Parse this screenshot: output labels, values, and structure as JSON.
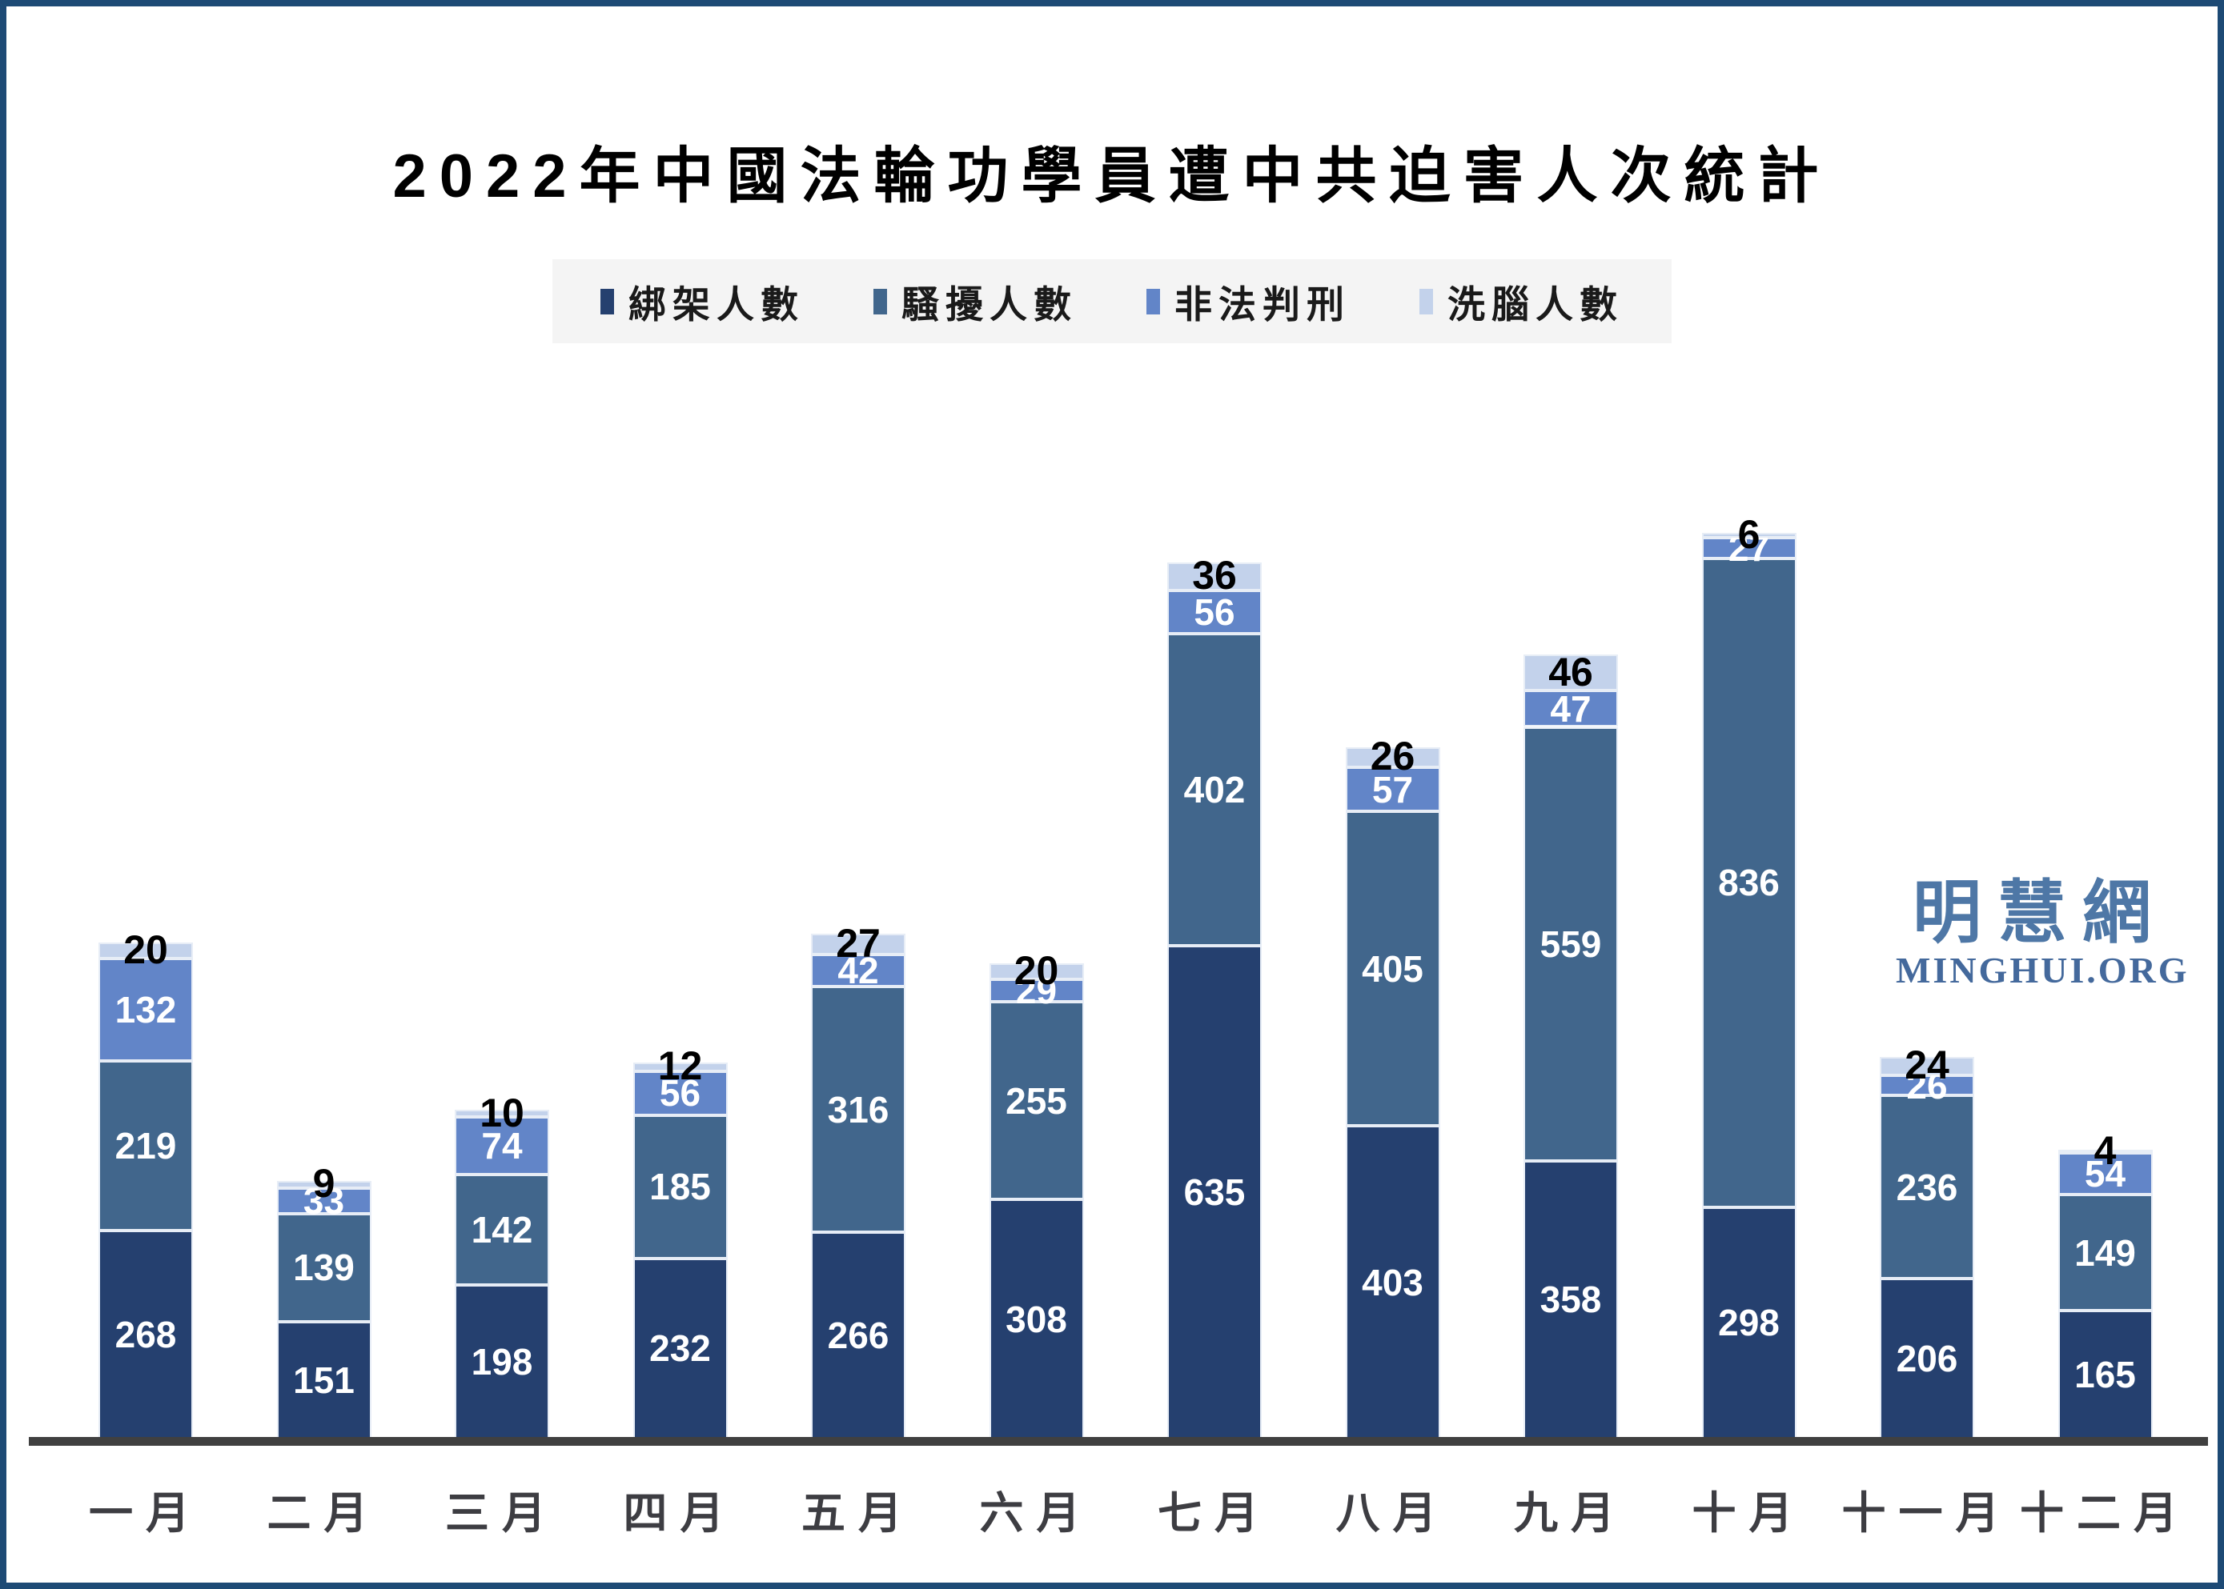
{
  "title": "2022年中國法輪功學員遭中共迫害人次統計",
  "logo": {
    "chinese": "明慧網",
    "latin": "MINGHUI.ORG",
    "color": "#4e77a6"
  },
  "axis_color": "#404040",
  "frame_border_color": "#1d4a75",
  "legend_background": "#f4f4f4",
  "chart_data": {
    "type": "bar",
    "stacked": true,
    "grid": false,
    "legend_position": "top",
    "title": "2022年中國法輪功學員遭中共迫害人次統計",
    "categories": [
      "一月",
      "二月",
      "三月",
      "四月",
      "五月",
      "六月",
      "七月",
      "八月",
      "九月",
      "十月",
      "十一月",
      "十二月"
    ],
    "series": [
      {
        "key": "kidnapped",
        "name": "綁架人數",
        "color": "#25406f",
        "label_color": "#ffffff",
        "values": [
          268,
          151,
          198,
          232,
          266,
          308,
          635,
          403,
          358,
          298,
          206,
          165
        ]
      },
      {
        "key": "harassed",
        "name": "騷擾人數",
        "color": "#41668c",
        "label_color": "#ffffff",
        "values": [
          219,
          139,
          142,
          185,
          316,
          255,
          402,
          405,
          559,
          836,
          236,
          149
        ]
      },
      {
        "key": "sentenced",
        "name": "非法判刑",
        "color": "#6285c8",
        "label_color": "#ffffff",
        "values": [
          132,
          33,
          74,
          56,
          42,
          29,
          56,
          57,
          47,
          27,
          26,
          54
        ]
      },
      {
        "key": "brainwashed",
        "name": "洗腦人數",
        "color": "#c3d2eb",
        "label_color": "#000000",
        "values": [
          20,
          9,
          10,
          12,
          27,
          20,
          36,
          26,
          46,
          6,
          24,
          4
        ]
      }
    ],
    "totals": [
      639,
      332,
      424,
      485,
      651,
      612,
      1129,
      891,
      1010,
      1167,
      492,
      372
    ],
    "value_label_note": "first three series labeled in white inside segments; 洗腦人數 values labeled in black at the top of each stack"
  }
}
